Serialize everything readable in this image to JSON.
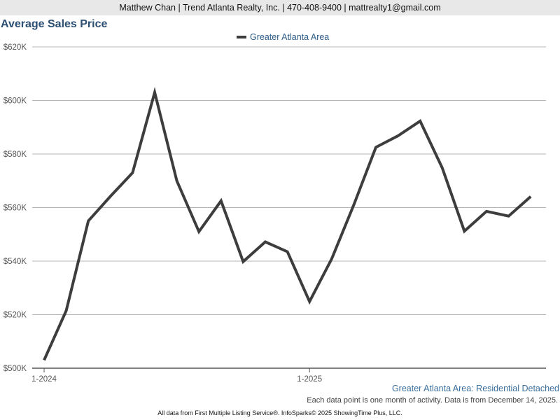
{
  "header": {
    "contact": "Matthew Chan | Trend Atlanta Realty, Inc. | 470-408-9400 | mattrealty1@gmail.com"
  },
  "chart_data": {
    "type": "line",
    "title": "Average Sales Price",
    "xlabel": "",
    "ylabel": "",
    "x_ticks": [
      "1-2024",
      "1-2025"
    ],
    "y_ticks": [
      "$500K",
      "$520K",
      "$540K",
      "$560K",
      "$580K",
      "$600K",
      "$620K"
    ],
    "ylim": [
      500000,
      620000
    ],
    "grid": true,
    "legend_position": "top-center",
    "series": [
      {
        "name": "Greater Atlanta Area",
        "color": "#3d3d3d",
        "x": [
          "2024-01",
          "2024-02",
          "2024-03",
          "2024-04",
          "2024-05",
          "2024-06",
          "2024-07",
          "2024-08",
          "2024-09",
          "2024-10",
          "2024-11",
          "2024-12",
          "2025-01",
          "2025-02",
          "2025-03",
          "2025-04",
          "2025-05",
          "2025-06",
          "2025-07",
          "2025-08",
          "2025-09",
          "2025-10",
          "2025-11"
        ],
        "values": [
          503000,
          521500,
          555000,
          564200,
          573000,
          603000,
          570000,
          551000,
          562500,
          539800,
          547200,
          543500,
          524900,
          540800,
          561000,
          582500,
          586800,
          592300,
          574800,
          551200,
          558600,
          556800,
          564100
        ]
      }
    ]
  },
  "footer": {
    "series_label": "Greater Atlanta Area: Residential Detached",
    "note": "Each data point is one month of activity. Data is from December 14, 2025.",
    "source": "All data from First Multiple Listing Service®. InfoSparks© 2025 ShowingTime Plus, LLC."
  }
}
